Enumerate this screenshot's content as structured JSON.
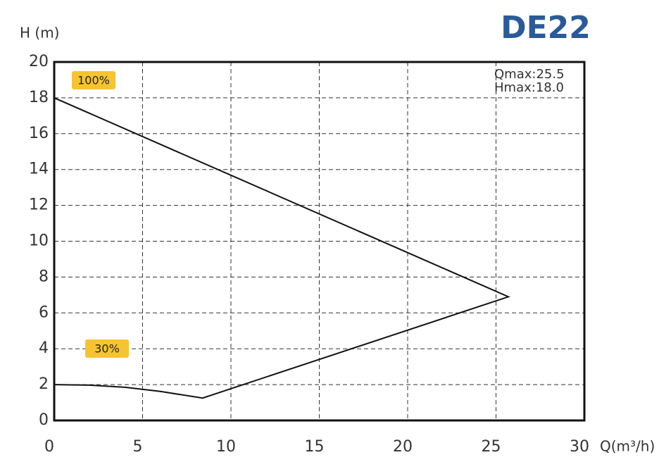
{
  "chart_data": {
    "type": "line",
    "title": "DE22",
    "y_label": "H (m)",
    "x_label": "Q(m³/h)",
    "annotations": [
      "100%",
      "30%",
      "Qmax:25.5",
      "Hmax:18.0"
    ],
    "series": [
      {
        "color": "#111111",
        "x": [
          0,
          25.7,
          8.4,
          6,
          4,
          2,
          0
        ],
        "values": [
          18,
          6.9,
          1.25,
          1.62,
          1.85,
          1.97,
          2
        ]
      }
    ],
    "xlim": [
      0,
      30
    ],
    "xticks": [
      0,
      5,
      10,
      15,
      20,
      25,
      30
    ],
    "ylim": [
      0,
      20
    ],
    "yticks": [
      0,
      2,
      4,
      6,
      8,
      10,
      12,
      14,
      16,
      18,
      20
    ],
    "grid": true
  }
}
